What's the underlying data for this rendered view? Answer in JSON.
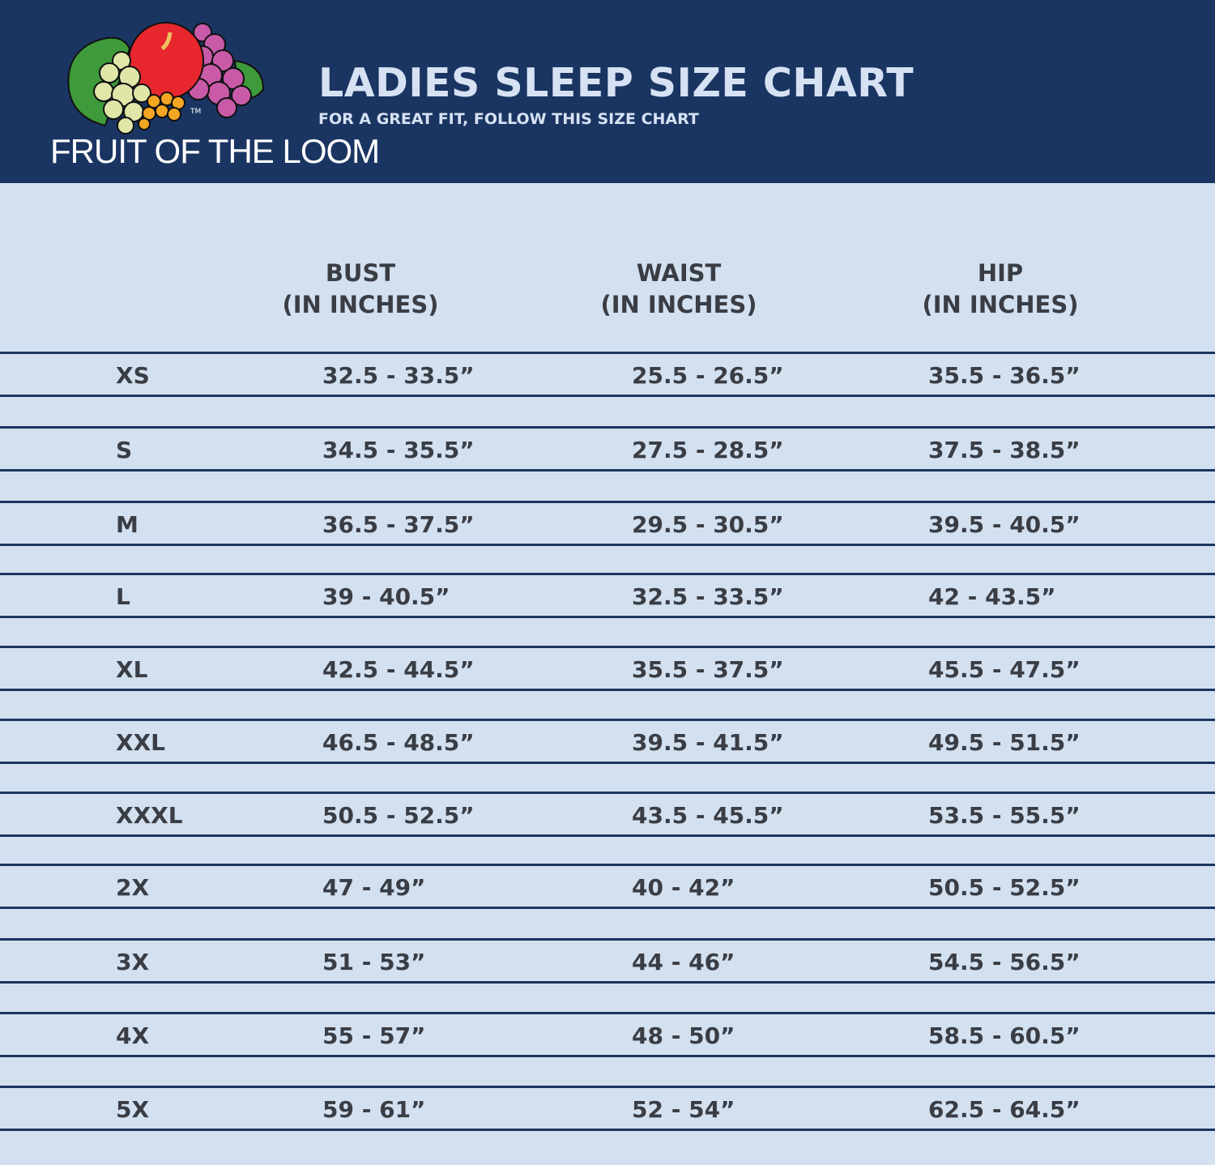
{
  "brand": {
    "name": "FRUIT OF THE LOOM",
    "trademark": "TM",
    "registered": "®"
  },
  "header": {
    "title": "LADIES SLEEP SIZE CHART",
    "subtitle": "FOR A GREAT FIT, FOLLOW THIS SIZE CHART"
  },
  "colors": {
    "header_bg": "#1b3562",
    "body_bg": "#d3e0f0",
    "rule": "#1b3562"
  },
  "table": {
    "columns": [
      {
        "name": "BUST",
        "unit": "(IN INCHES)"
      },
      {
        "name": "WAIST",
        "unit": "(IN INCHES)"
      },
      {
        "name": "HIP",
        "unit": "(IN INCHES)"
      }
    ],
    "rows": [
      {
        "size": "XS",
        "bust": "32.5 - 33.5”",
        "waist": "25.5 - 26.5”",
        "hip": "35.5 - 36.5”"
      },
      {
        "size": "S",
        "bust": "34.5 - 35.5”",
        "waist": "27.5 - 28.5”",
        "hip": "37.5 - 38.5”"
      },
      {
        "size": "M",
        "bust": "36.5 - 37.5”",
        "waist": "29.5 - 30.5”",
        "hip": "39.5 - 40.5”"
      },
      {
        "size": "L",
        "bust": "39 - 40.5”",
        "waist": "32.5 - 33.5”",
        "hip": "42 - 43.5”"
      },
      {
        "size": "XL",
        "bust": "42.5 - 44.5”",
        "waist": "35.5 - 37.5”",
        "hip": "45.5 - 47.5”"
      },
      {
        "size": "XXL",
        "bust": "46.5 - 48.5”",
        "waist": "39.5 - 41.5”",
        "hip": "49.5 - 51.5”"
      },
      {
        "size": "XXXL",
        "bust": "50.5 - 52.5”",
        "waist": "43.5 - 45.5”",
        "hip": "53.5 - 55.5”"
      },
      {
        "size": "2X",
        "bust": "47 - 49”",
        "waist": "40 - 42”",
        "hip": "50.5 - 52.5”"
      },
      {
        "size": "3X",
        "bust": "51 - 53”",
        "waist": "44 - 46”",
        "hip": "54.5 - 56.5”"
      },
      {
        "size": "4X",
        "bust": "55 - 57”",
        "waist": "48 - 50”",
        "hip": "58.5 - 60.5”"
      },
      {
        "size": "5X",
        "bust": "59 - 61”",
        "waist": "52 - 54”",
        "hip": "62.5 - 64.5”"
      }
    ]
  }
}
